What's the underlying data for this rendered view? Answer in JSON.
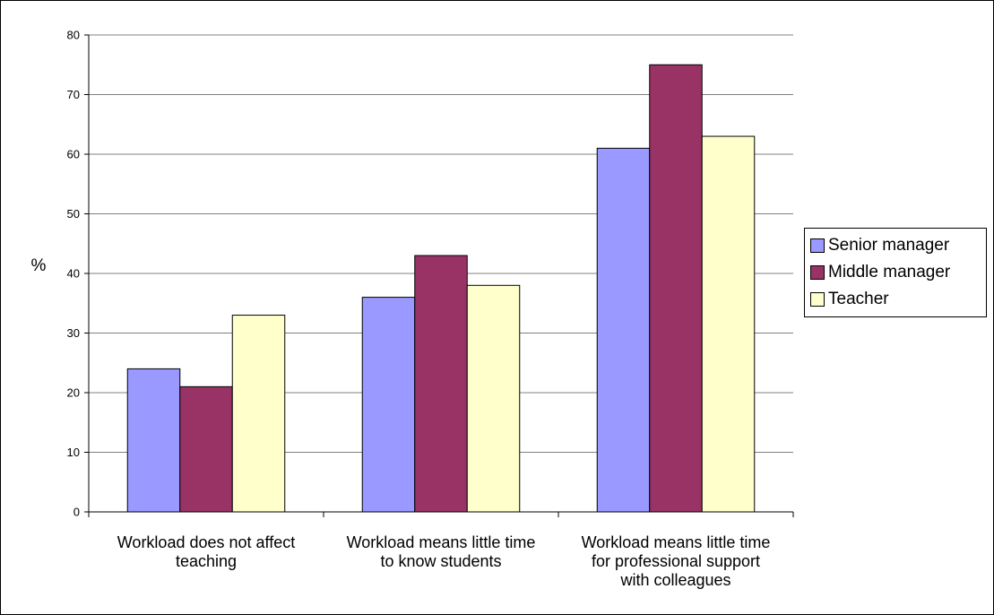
{
  "chart_data": {
    "type": "bar",
    "categories": [
      [
        "Workload does not affect",
        "teaching"
      ],
      [
        "Workload means little time",
        "to know students"
      ],
      [
        "Workload means little time",
        "for professional support",
        "with colleagues"
      ]
    ],
    "series": [
      {
        "name": "Senior manager",
        "values": [
          24,
          36,
          61
        ],
        "color": "#9999ff"
      },
      {
        "name": "Middle manager",
        "values": [
          21,
          43,
          75
        ],
        "color": "#993366"
      },
      {
        "name": "Teacher",
        "values": [
          33,
          38,
          63
        ],
        "color": "#ffffcc"
      }
    ],
    "ylabel": "%",
    "ylim": [
      0,
      80
    ],
    "yticks": [
      0,
      10,
      20,
      30,
      40,
      50,
      60,
      70,
      80
    ],
    "grid": true,
    "legend": "right"
  }
}
